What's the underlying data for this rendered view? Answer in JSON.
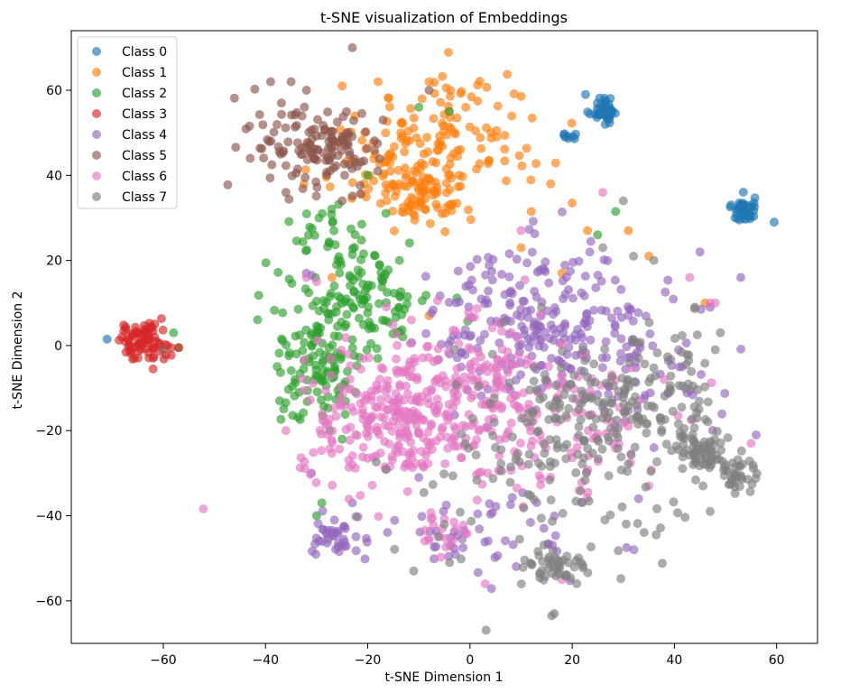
{
  "chart_data": {
    "type": "scatter",
    "title": "t-SNE visualization of Embeddings",
    "xlabel": "t-SNE Dimension 1",
    "ylabel": "t-SNE Dimension 2",
    "xlim": [
      -78,
      68
    ],
    "ylim": [
      -70,
      74
    ],
    "xticks": [
      -60,
      -40,
      -20,
      0,
      20,
      40,
      60
    ],
    "yticks": [
      -60,
      -40,
      -20,
      0,
      20,
      40,
      60
    ],
    "xtick_labels": [
      "−60",
      "−40",
      "−20",
      "0",
      "20",
      "40",
      "60"
    ],
    "ytick_labels": [
      "−60",
      "−40",
      "−20",
      "0",
      "20",
      "40",
      "60"
    ],
    "grid": false,
    "legend_position": "top-left",
    "marker_opacity": 0.65,
    "series": [
      {
        "name": "Class 0",
        "color": "#1f77b4",
        "clusters": [
          {
            "cx": 26,
            "cy": 55.5,
            "sx": 1.4,
            "sy": 1.8,
            "n": 40
          },
          {
            "cx": 53.5,
            "cy": 32,
            "sx": 1.1,
            "sy": 1.6,
            "n": 42
          },
          {
            "cx": 19.5,
            "cy": 49,
            "sx": 0.9,
            "sy": 0.6,
            "n": 8
          }
        ],
        "points": [
          [
            59.5,
            29
          ],
          [
            -71,
            1.5
          ]
        ]
      },
      {
        "name": "Class 1",
        "color": "#ff7f0e",
        "clusters": [
          {
            "cx": -9,
            "cy": 36,
            "sx": 5,
            "sy": 3.5,
            "n": 90
          },
          {
            "cx": -3,
            "cy": 50,
            "sx": 9,
            "sy": 7,
            "n": 110
          },
          {
            "cx": -17,
            "cy": 43,
            "sx": 6,
            "sy": 6,
            "n": 40
          }
        ],
        "points": [
          [
            20,
            33.5
          ],
          [
            -25,
            61
          ],
          [
            -18,
            62
          ],
          [
            -8,
            62
          ],
          [
            23,
            27
          ],
          [
            31,
            27
          ],
          [
            35,
            21
          ],
          [
            46,
            10
          ],
          [
            12,
            31.5
          ],
          [
            10,
            23
          ],
          [
            18,
            17
          ],
          [
            -27,
            16
          ],
          [
            -8,
            7
          ]
        ]
      },
      {
        "name": "Class 2",
        "color": "#2ca02c",
        "clusters": [
          {
            "cx": -30,
            "cy": -5,
            "sx": 4.5,
            "sy": 7,
            "n": 110
          },
          {
            "cx": -21,
            "cy": 12,
            "sx": 7,
            "sy": 7,
            "n": 130
          },
          {
            "cx": -28,
            "cy": 28,
            "sx": 4,
            "sy": 3,
            "n": 20
          }
        ],
        "points": [
          [
            -58,
            3
          ],
          [
            -57,
            -0.5
          ],
          [
            -30,
            -40
          ],
          [
            -20,
            40
          ],
          [
            -10,
            56
          ],
          [
            -4,
            55
          ],
          [
            28.5,
            31.5
          ],
          [
            25,
            26
          ],
          [
            -25,
            -22
          ],
          [
            -29,
            -37
          ]
        ]
      },
      {
        "name": "Class 3",
        "color": "#d62728",
        "clusters": [
          {
            "cx": -64,
            "cy": 1,
            "sx": 2.6,
            "sy": 2.1,
            "n": 75
          }
        ],
        "points": [
          [
            -62,
            -5.5
          ],
          [
            -57,
            -0.5
          ]
        ]
      },
      {
        "name": "Class 4",
        "color": "#9467bd",
        "clusters": [
          {
            "cx": 14,
            "cy": 6,
            "sx": 11,
            "sy": 9,
            "n": 240
          },
          {
            "cx": -26,
            "cy": -45,
            "sx": 2.2,
            "sy": 2.5,
            "n": 38
          },
          {
            "cx": 0,
            "cy": -45,
            "sx": 11,
            "sy": 4.5,
            "n": 55
          },
          {
            "cx": 35,
            "cy": -8,
            "sx": 7,
            "sy": 8,
            "n": 40
          }
        ],
        "points": [
          [
            -32,
            17
          ],
          [
            -31,
            16.5
          ],
          [
            -31,
            -30
          ],
          [
            -23,
            -37
          ],
          [
            45,
            22
          ],
          [
            53,
            16
          ],
          [
            56,
            -21
          ],
          [
            47,
            9
          ],
          [
            33,
            -36
          ],
          [
            36,
            -24
          ],
          [
            29,
            -12
          ],
          [
            -10,
            -31
          ]
        ]
      },
      {
        "name": "Class 5",
        "color": "#8c564b",
        "clusters": [
          {
            "cx": -25,
            "cy": 46,
            "sx": 3.5,
            "sy": 4,
            "n": 75
          },
          {
            "cx": -35,
            "cy": 48,
            "sx": 5,
            "sy": 6,
            "n": 65
          }
        ],
        "points": [
          [
            -23,
            70
          ],
          [
            -39,
            62
          ],
          [
            -35,
            62
          ],
          [
            -32,
            60
          ],
          [
            -43,
            44
          ],
          [
            -25,
            34
          ],
          [
            -36,
            36
          ],
          [
            -8,
            60
          ],
          [
            -17,
            53
          ],
          [
            -60,
            -1
          ]
        ]
      },
      {
        "name": "Class 6",
        "color": "#e377c2",
        "clusters": [
          {
            "cx": -13,
            "cy": -16,
            "sx": 10,
            "sy": 8,
            "n": 310
          },
          {
            "cx": 4,
            "cy": -12,
            "sx": 8,
            "sy": 10,
            "n": 120
          },
          {
            "cx": 22,
            "cy": -20,
            "sx": 8,
            "sy": 8,
            "n": 70
          },
          {
            "cx": -6,
            "cy": -43,
            "sx": 3.5,
            "sy": 3,
            "n": 20
          }
        ],
        "points": [
          [
            -32,
            16
          ],
          [
            -30,
            15
          ],
          [
            47,
            10
          ],
          [
            48,
            10
          ],
          [
            43,
            16
          ],
          [
            55,
            -23
          ],
          [
            26,
            36
          ],
          [
            10,
            27
          ],
          [
            3,
            -56
          ],
          [
            18,
            -55
          ],
          [
            35,
            -33
          ],
          [
            33,
            -13
          ],
          [
            38,
            -8
          ],
          [
            -36,
            -20
          ]
        ]
      },
      {
        "name": "Class 7",
        "color": "#7f7f7f",
        "clusters": [
          {
            "cx": 45,
            "cy": -25,
            "sx": 2.5,
            "sy": 3,
            "n": 60
          },
          {
            "cx": 52,
            "cy": -30,
            "sx": 2,
            "sy": 3,
            "n": 40
          },
          {
            "cx": 16,
            "cy": -52,
            "sx": 3,
            "sy": 2.5,
            "n": 45
          },
          {
            "cx": 23,
            "cy": -18,
            "sx": 8,
            "sy": 8,
            "n": 130
          },
          {
            "cx": 37,
            "cy": -12,
            "sx": 7,
            "sy": 8,
            "n": 80
          },
          {
            "cx": 8,
            "cy": -28,
            "sx": 10,
            "sy": 12,
            "n": 60
          },
          {
            "cx": 30,
            "cy": -42,
            "sx": 6,
            "sy": 6,
            "n": 20
          }
        ],
        "points": [
          [
            16,
            -63.5
          ],
          [
            16.5,
            -63
          ],
          [
            47,
            -39
          ],
          [
            -11,
            -53
          ],
          [
            -5,
            -42
          ],
          [
            48,
            -1
          ],
          [
            49,
            3
          ],
          [
            44,
            9
          ],
          [
            32,
            21
          ],
          [
            36,
            20
          ],
          [
            26,
            23
          ],
          [
            14,
            9
          ],
          [
            -3,
            -1
          ],
          [
            30,
            34
          ],
          [
            -4,
            -51
          ]
        ]
      }
    ]
  }
}
